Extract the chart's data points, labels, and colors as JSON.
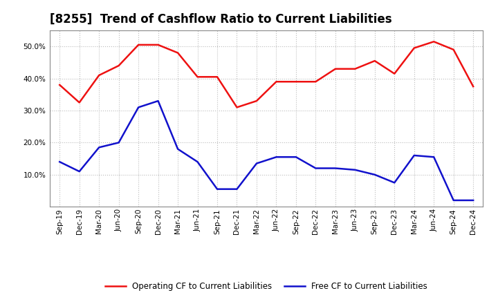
{
  "title": "[8255]  Trend of Cashflow Ratio to Current Liabilities",
  "x_labels": [
    "Sep-19",
    "Dec-19",
    "Mar-20",
    "Jun-20",
    "Sep-20",
    "Dec-20",
    "Mar-21",
    "Jun-21",
    "Sep-21",
    "Dec-21",
    "Mar-22",
    "Jun-22",
    "Sep-22",
    "Dec-22",
    "Mar-23",
    "Jun-23",
    "Sep-23",
    "Dec-23",
    "Mar-24",
    "Jun-24",
    "Sep-24",
    "Dec-24"
  ],
  "operating_cf": [
    0.38,
    0.325,
    0.41,
    0.44,
    0.505,
    0.505,
    0.48,
    0.405,
    0.405,
    0.31,
    0.33,
    0.39,
    0.39,
    0.39,
    0.43,
    0.43,
    0.455,
    0.415,
    0.495,
    0.515,
    0.49,
    0.375
  ],
  "free_cf": [
    0.14,
    0.11,
    0.185,
    0.2,
    0.31,
    0.33,
    0.18,
    0.14,
    0.055,
    0.055,
    0.135,
    0.155,
    0.155,
    0.12,
    0.12,
    0.115,
    0.1,
    0.075,
    0.16,
    0.155,
    0.02,
    0.02
  ],
  "operating_color": "#EE1111",
  "free_color": "#1111CC",
  "ylim": [
    0.0,
    0.55
  ],
  "yticks": [
    0.1,
    0.2,
    0.3,
    0.4,
    0.5
  ],
  "legend_labels": [
    "Operating CF to Current Liabilities",
    "Free CF to Current Liabilities"
  ],
  "bg_color": "#FFFFFF",
  "plot_bg_color": "#FFFFFF",
  "grid_color": "#BBBBBB",
  "title_fontsize": 12,
  "tick_fontsize": 7.5,
  "legend_fontsize": 8.5
}
